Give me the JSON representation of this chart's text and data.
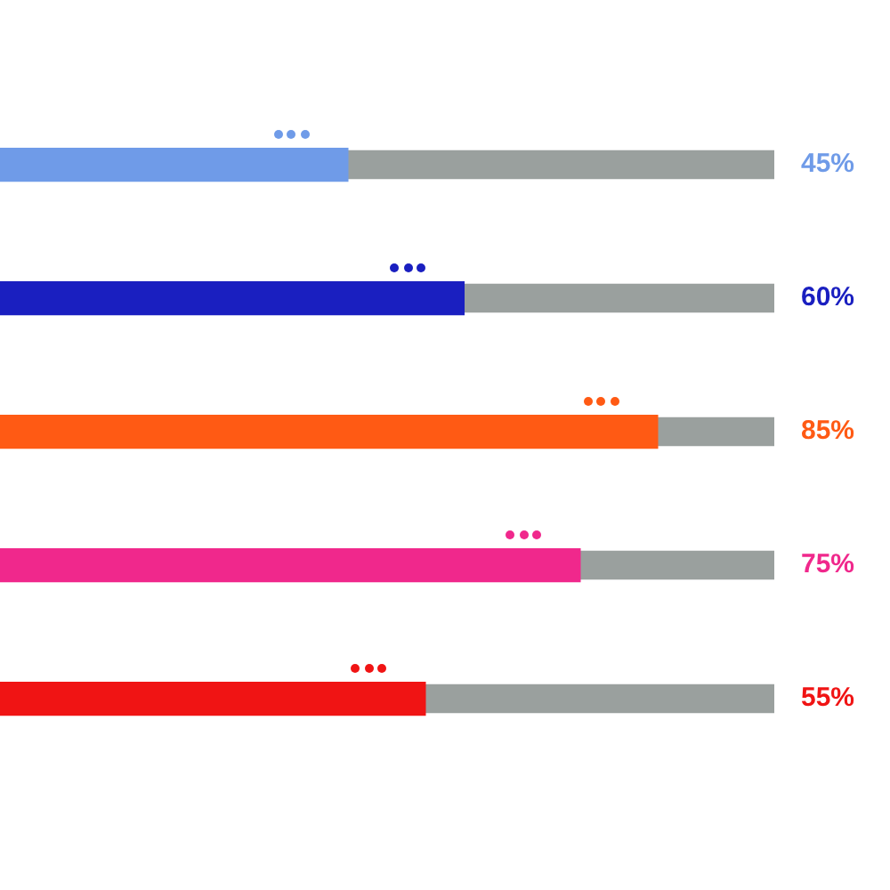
{
  "chart_data": {
    "type": "bar",
    "orientation": "horizontal",
    "categories": [
      null,
      null,
      null,
      null,
      null
    ],
    "values": [
      45,
      60,
      85,
      75,
      55
    ],
    "colors": [
      "#6f9be8",
      "#1a1fc0",
      "#ff5a14",
      "#f0288c",
      "#f01414"
    ],
    "value_labels": [
      "45%",
      "60%",
      "85%",
      "75%",
      "55%"
    ],
    "xlim": [
      0,
      100
    ],
    "tick_labels": false
  }
}
